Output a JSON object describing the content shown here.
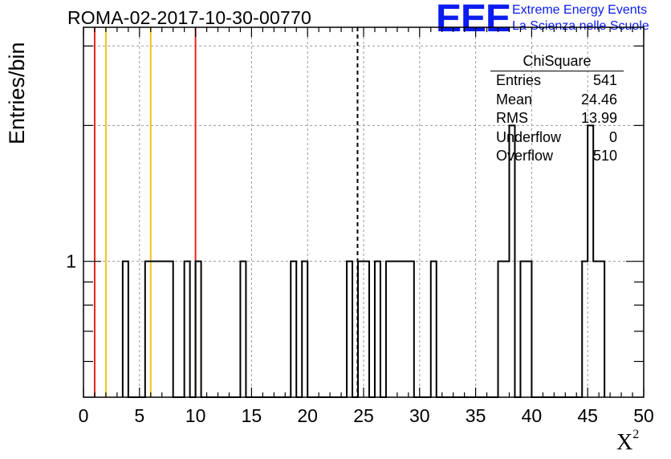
{
  "title": "ROMA-02-2017-10-30-00770",
  "logo": {
    "letters": "EEE",
    "line1": "Extreme Energy Events",
    "line2": "La Scienza nelle Scuole",
    "color": "#0a1cf0"
  },
  "stats_box": {
    "title": "ChiSquare",
    "rows": [
      {
        "label": "Entries",
        "value": "541"
      },
      {
        "label": "Mean",
        "value": "24.46"
      },
      {
        "label": "RMS",
        "value": "13.99"
      },
      {
        "label": "Underflow",
        "value": "0"
      },
      {
        "label": "Overflow",
        "value": "510"
      }
    ]
  },
  "chart_data": {
    "type": "histogram",
    "title": "ROMA-02-2017-10-30-00770",
    "xlabel": "X",
    "xlabel_superscript": "2",
    "ylabel": "Entries/bin",
    "xlim": [
      0,
      50
    ],
    "y_scale": "log",
    "ylim": [
      0.5,
      3.3
    ],
    "x_ticks": [
      "0",
      "5",
      "10",
      "15",
      "20",
      "25",
      "30",
      "35",
      "40",
      "45",
      "50"
    ],
    "y_tick_labels": [
      "1"
    ],
    "grid": true,
    "bin_width": 0.5,
    "bins": [
      {
        "x_low": 3.5,
        "x_high": 4.0,
        "count": 1
      },
      {
        "x_low": 5.5,
        "x_high": 8.0,
        "count": 1
      },
      {
        "x_low": 9.0,
        "x_high": 9.5,
        "count": 1
      },
      {
        "x_low": 10.0,
        "x_high": 10.5,
        "count": 1
      },
      {
        "x_low": 14.0,
        "x_high": 14.5,
        "count": 1
      },
      {
        "x_low": 18.5,
        "x_high": 19.0,
        "count": 1
      },
      {
        "x_low": 19.5,
        "x_high": 20.0,
        "count": 1
      },
      {
        "x_low": 23.5,
        "x_high": 24.0,
        "count": 1
      },
      {
        "x_low": 24.5,
        "x_high": 25.5,
        "count": 1
      },
      {
        "x_low": 26.0,
        "x_high": 26.5,
        "count": 1
      },
      {
        "x_low": 27.0,
        "x_high": 29.5,
        "count": 1
      },
      {
        "x_low": 31.0,
        "x_high": 31.5,
        "count": 1
      },
      {
        "x_low": 37.0,
        "x_high": 37.5,
        "count": 1
      },
      {
        "x_low": 37.5,
        "x_high": 38.0,
        "count": 1
      },
      {
        "x_low": 38.0,
        "x_high": 38.5,
        "count": 2
      },
      {
        "x_low": 39.0,
        "x_high": 40.0,
        "count": 1
      },
      {
        "x_low": 44.5,
        "x_high": 45.0,
        "count": 1
      },
      {
        "x_low": 45.0,
        "x_high": 45.5,
        "count": 2
      },
      {
        "x_low": 45.5,
        "x_high": 46.0,
        "count": 1
      },
      {
        "x_low": 46.0,
        "x_high": 46.5,
        "count": 1
      }
    ],
    "vertical_lines": [
      {
        "x": 1.0,
        "color": "#e3241c",
        "style": "solid"
      },
      {
        "x": 2.0,
        "color": "#f2c21b",
        "style": "solid"
      },
      {
        "x": 6.0,
        "color": "#f2c21b",
        "style": "solid"
      },
      {
        "x": 10.0,
        "color": "#e3241c",
        "style": "solid"
      },
      {
        "x": 24.46,
        "color": "#000000",
        "style": "dashed"
      }
    ]
  }
}
